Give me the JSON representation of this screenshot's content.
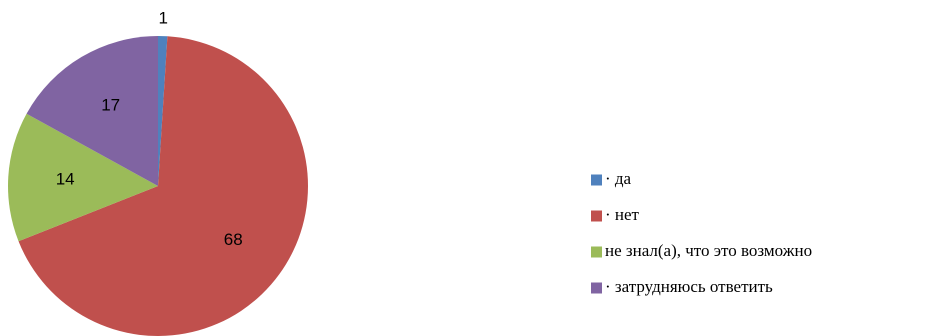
{
  "chart_data": {
    "type": "pie",
    "title": "",
    "categories": [
      "· да",
      "· нет",
      "не знал(а), что это возможно",
      "· затрудняюсь ответить"
    ],
    "values": [
      1,
      68,
      14,
      17
    ],
    "colors": [
      "#4f81bd",
      "#c0504d",
      "#9bbb59",
      "#8064a2"
    ],
    "legend_position": "right",
    "start_angle_deg": 0,
    "direction": "clockwise"
  }
}
